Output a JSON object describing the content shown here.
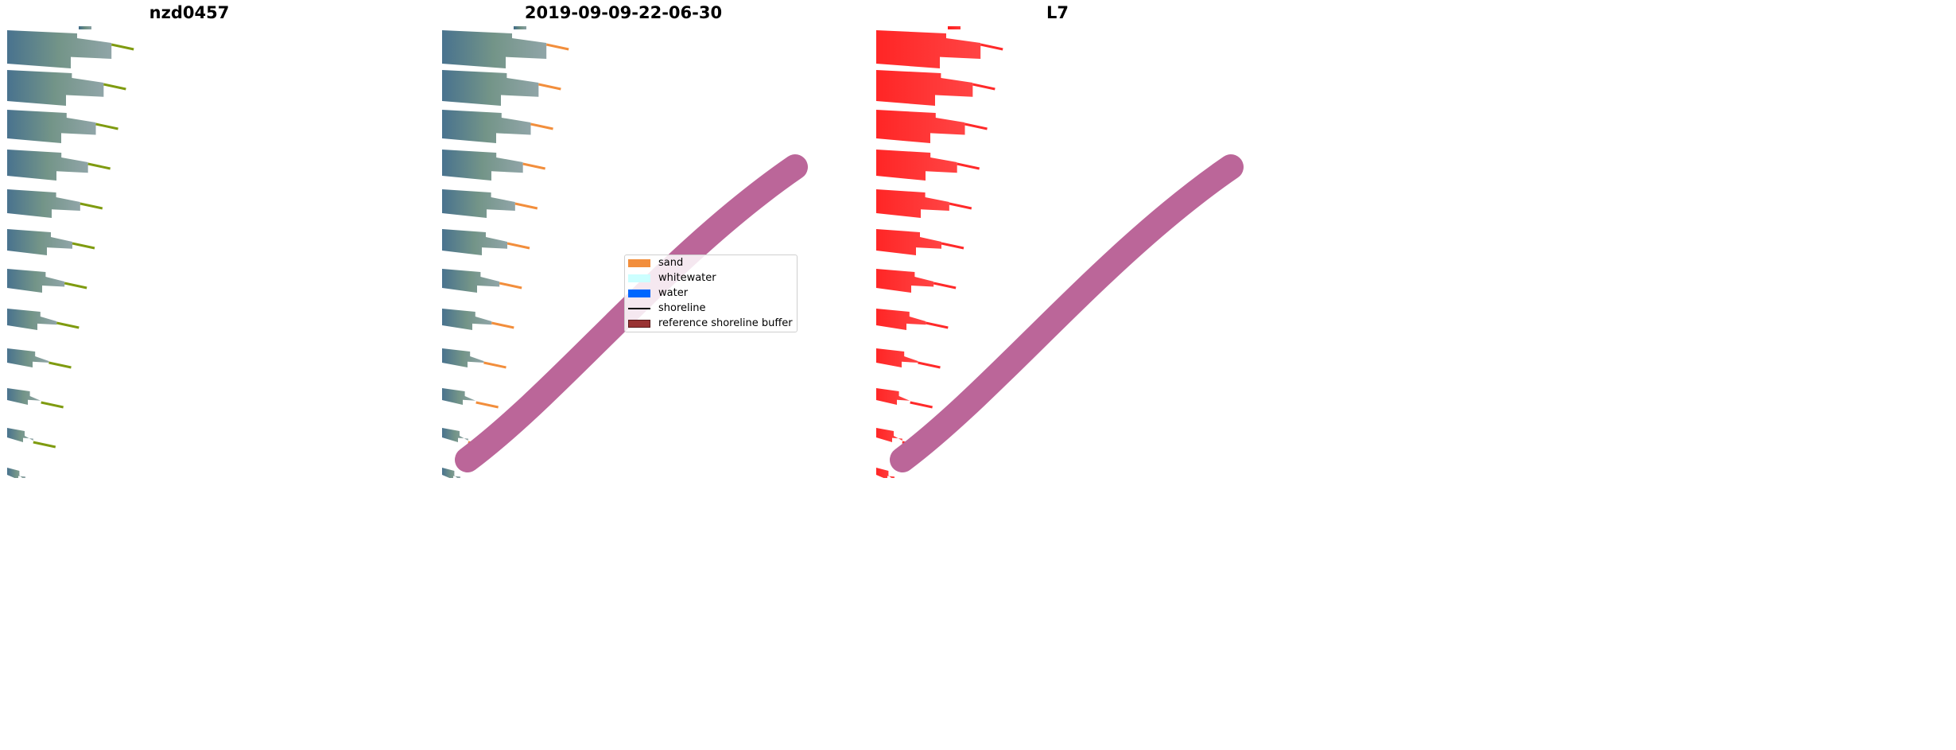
{
  "panels": [
    {
      "title": "nzd0457",
      "kind": "rgb"
    },
    {
      "title": "2019-09-09-22-06-30",
      "kind": "classified"
    },
    {
      "title": "L7",
      "kind": "ndwi"
    }
  ],
  "legend": {
    "items": [
      {
        "label": "sand",
        "color": "#f28e3c",
        "type": "patch"
      },
      {
        "label": "whitewater",
        "color": "#ccffff",
        "type": "patch"
      },
      {
        "label": "water",
        "color": "#0066ff",
        "type": "patch"
      },
      {
        "label": "shoreline",
        "color": "#000000",
        "type": "line"
      },
      {
        "label": "reference shoreline buffer",
        "color": "#993333",
        "type": "patch"
      }
    ]
  },
  "colors": {
    "strip_rgb": "#5f8c86",
    "strip_rgb_dark": "#3f6b88",
    "sand_rgb": "#7f9b10",
    "sand_class": "#f28e3c",
    "ndwi": "#ff2a2a",
    "buffer": "#bb6699"
  }
}
